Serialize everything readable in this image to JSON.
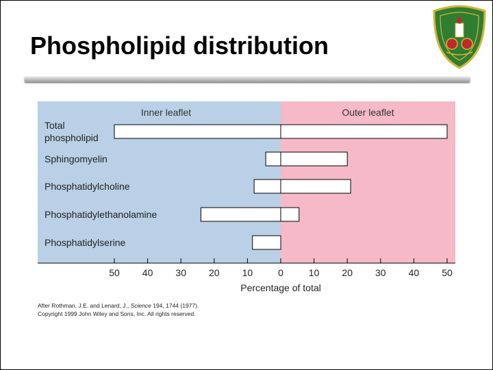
{
  "slide": {
    "title": "Phospholipid distribution"
  },
  "colors": {
    "inner_panel": "#b9d0e6",
    "outer_panel": "#f5b9c7",
    "bar_fill": "#ffffff",
    "bar_stroke": "#000000",
    "logo_green": "#2f7d31",
    "logo_gold": "#d2b43a",
    "logo_red": "#c0282a"
  },
  "chart_data": {
    "type": "bar",
    "orientation": "horizontal-diverging",
    "panel_labels": {
      "left": "Inner leaflet",
      "right": "Outer leaflet"
    },
    "categories": [
      "Total phospholipid",
      "Sphingomyelin",
      "Phosphatidylcholine",
      "Phosphatidylethanolamine",
      "Phosphatidylserine"
    ],
    "category_display": [
      [
        "Total",
        "phospholipid"
      ],
      [
        "Sphingomyelin"
      ],
      [
        "Phosphatidylcholine"
      ],
      [
        "Phosphatidylethanolamine"
      ],
      [
        "Phosphatidylserine"
      ]
    ],
    "series": [
      {
        "name": "Inner leaflet",
        "values": [
          50,
          4.5,
          8,
          24,
          8.5
        ]
      },
      {
        "name": "Outer leaflet",
        "values": [
          50,
          20,
          21,
          5.5,
          0
        ]
      }
    ],
    "xlabel": "Percentage of total",
    "xlim": [
      -50,
      50
    ],
    "ticks": [
      -50,
      -40,
      -30,
      -20,
      -10,
      0,
      10,
      20,
      30,
      40,
      50
    ],
    "tick_labels": [
      "50",
      "40",
      "30",
      "20",
      "10",
      "0",
      "10",
      "20",
      "30",
      "40",
      "50"
    ],
    "grid": false
  },
  "citation": {
    "line1_before": "After Rothman, J.E. and Lenard, J., ",
    "line1_journal": "Science",
    "line1_after": " 194, 1744 (1977).",
    "line2": "Copyright 1999 John Wiley and Sons, Inc. All rights reserved."
  }
}
